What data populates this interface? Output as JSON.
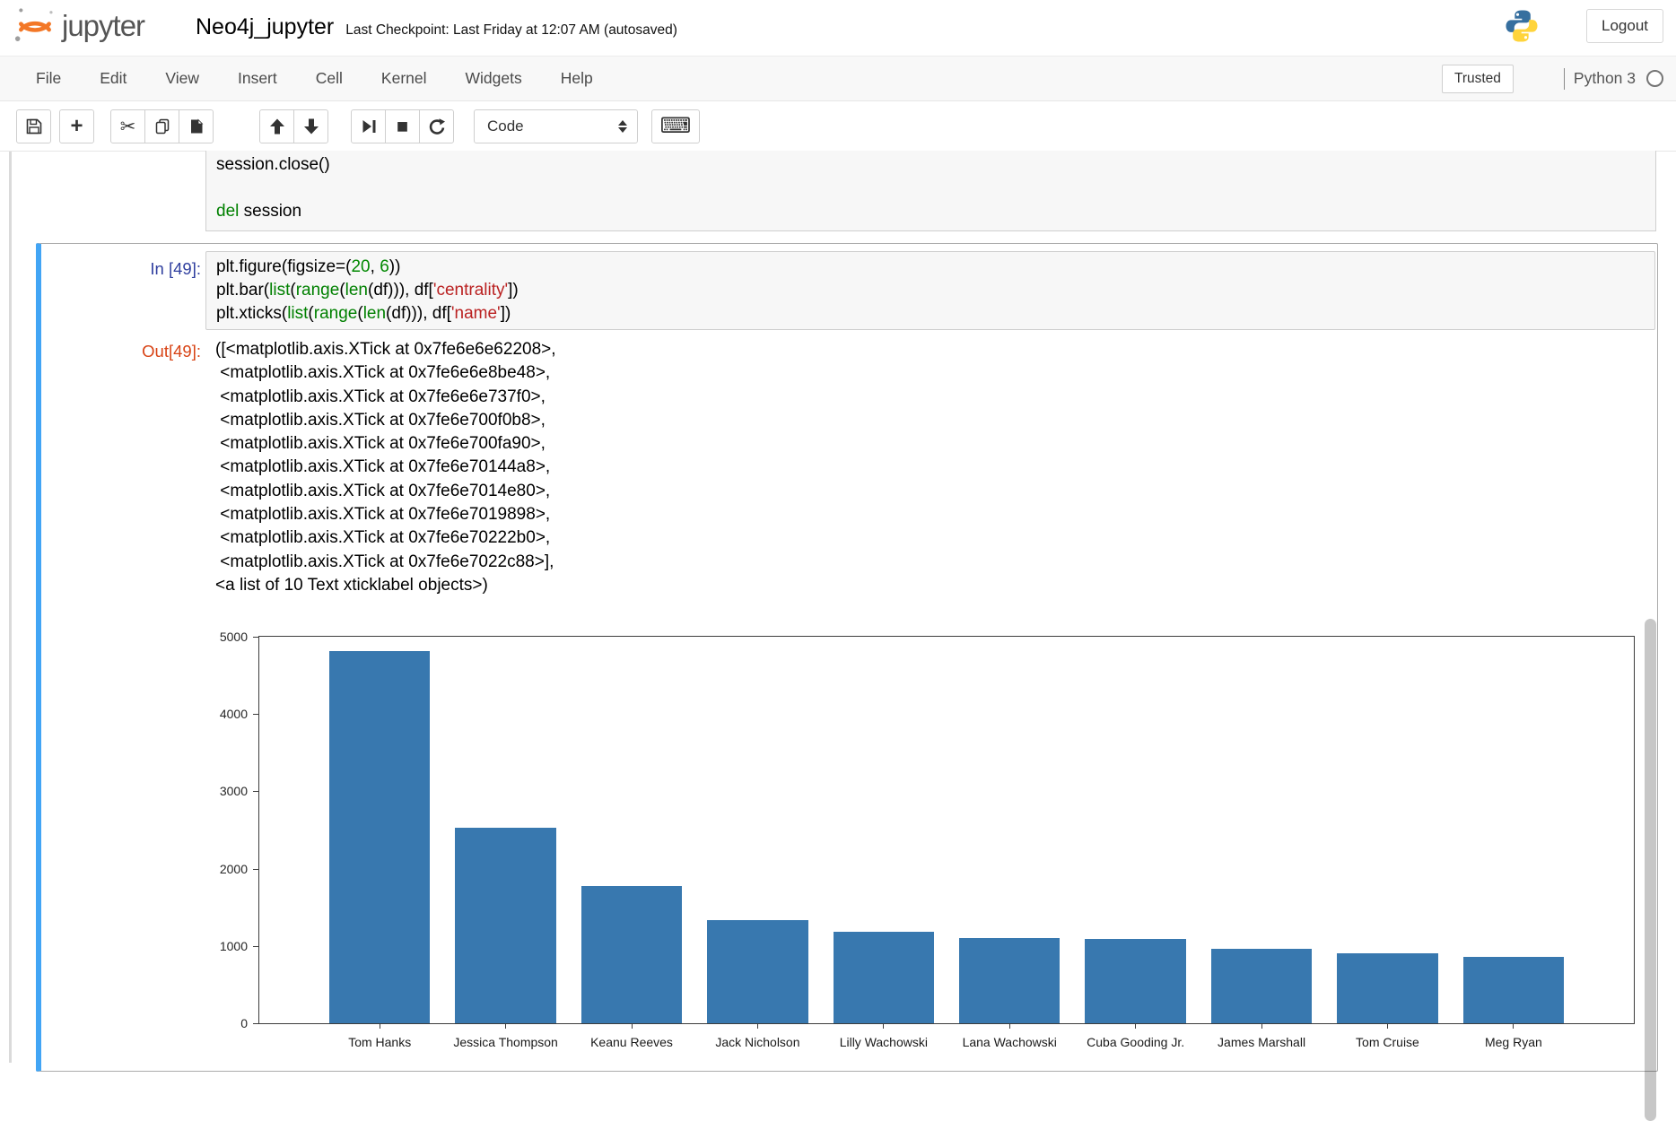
{
  "header": {
    "logo_text": "jupyter",
    "title": "Neo4j_jupyter",
    "checkpoint": "Last Checkpoint: Last Friday at 12:07 AM (autosaved)",
    "logout_label": "Logout"
  },
  "menu": {
    "items": [
      "File",
      "Edit",
      "View",
      "Insert",
      "Cell",
      "Kernel",
      "Widgets",
      "Help"
    ],
    "trusted_label": "Trusted",
    "kernel_name": "Python 3"
  },
  "toolbar": {
    "cell_type_selected": "Code",
    "buttons": [
      "save",
      "add-cell",
      "cut",
      "copy",
      "paste",
      "move-up",
      "move-down",
      "run",
      "interrupt",
      "restart",
      "cell-type",
      "command-palette"
    ],
    "icons": {
      "add": "+",
      "cut": "✂",
      "stop": "■",
      "keyboard": "⌨"
    }
  },
  "colors": {
    "accent_selected_cell": "#42A5F5",
    "input_prompt": "#303F9F",
    "output_prompt": "#D84315",
    "bar": "#3878af",
    "keyword": "#008000",
    "builtin": "#008000",
    "number": "#008800",
    "string": "#BA2121",
    "jupyter_orange": "#F37726"
  },
  "cells": {
    "previous": {
      "lines": [
        [
          {
            "t": "session.close()",
            "c": "d"
          }
        ],
        [],
        [
          {
            "t": "del",
            "c": "k"
          },
          {
            "t": " session",
            "c": "d"
          }
        ]
      ]
    },
    "current": {
      "in_prompt": "In [49]:",
      "out_prompt": "Out[49]:",
      "code": [
        [
          {
            "t": "plt.figure(figsize=(",
            "c": "d"
          },
          {
            "t": "20",
            "c": "n"
          },
          {
            "t": ", ",
            "c": "d"
          },
          {
            "t": "6",
            "c": "n"
          },
          {
            "t": "))",
            "c": "d"
          }
        ],
        [
          {
            "t": "plt.bar(",
            "c": "d"
          },
          {
            "t": "list",
            "c": "b"
          },
          {
            "t": "(",
            "c": "d"
          },
          {
            "t": "range",
            "c": "b"
          },
          {
            "t": "(",
            "c": "d"
          },
          {
            "t": "len",
            "c": "b"
          },
          {
            "t": "(df))), df[",
            "c": "d"
          },
          {
            "t": "'centrality'",
            "c": "s"
          },
          {
            "t": "])",
            "c": "d"
          }
        ],
        [
          {
            "t": "plt.xticks(",
            "c": "d"
          },
          {
            "t": "list",
            "c": "b"
          },
          {
            "t": "(",
            "c": "d"
          },
          {
            "t": "range",
            "c": "b"
          },
          {
            "t": "(",
            "c": "d"
          },
          {
            "t": "len",
            "c": "b"
          },
          {
            "t": "(df))), df[",
            "c": "d"
          },
          {
            "t": "'name'",
            "c": "s"
          },
          {
            "t": "])",
            "c": "d"
          }
        ]
      ],
      "output_lines": [
        "([<matplotlib.axis.XTick at 0x7fe6e6e62208>,",
        " <matplotlib.axis.XTick at 0x7fe6e6e8be48>,",
        " <matplotlib.axis.XTick at 0x7fe6e6e737f0>,",
        " <matplotlib.axis.XTick at 0x7fe6e700f0b8>,",
        " <matplotlib.axis.XTick at 0x7fe6e700fa90>,",
        " <matplotlib.axis.XTick at 0x7fe6e70144a8>,",
        " <matplotlib.axis.XTick at 0x7fe6e7014e80>,",
        " <matplotlib.axis.XTick at 0x7fe6e7019898>,",
        " <matplotlib.axis.XTick at 0x7fe6e70222b0>,",
        " <matplotlib.axis.XTick at 0x7fe6e7022c88>],",
        "<a list of 10 Text xticklabel objects>)"
      ]
    }
  },
  "chart_data": {
    "type": "bar",
    "title": "",
    "xlabel": "",
    "ylabel": "",
    "categories": [
      "Tom Hanks",
      "Jessica Thompson",
      "Keanu Reeves",
      "Jack Nicholson",
      "Lilly Wachowski",
      "Lana Wachowski",
      "Cuba Gooding Jr.",
      "James Marshall",
      "Tom Cruise",
      "Meg Ryan"
    ],
    "values": [
      4810,
      2530,
      1775,
      1330,
      1180,
      1105,
      1090,
      965,
      900,
      860
    ],
    "ylim": [
      0,
      5000
    ],
    "yticks": [
      0,
      1000,
      2000,
      3000,
      4000,
      5000
    ],
    "grid": false,
    "legend": false,
    "bar_color": "#3878af"
  }
}
